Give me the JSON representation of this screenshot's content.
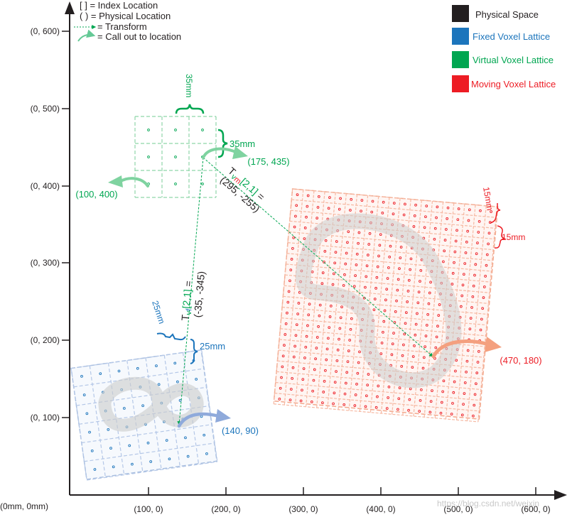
{
  "legend_left": {
    "index_location": "[ ] = Index Location",
    "physical_location": "( ) = Physical Location",
    "transform": "= Transform",
    "callout": "= Call out to location"
  },
  "legend_right": {
    "physical_space": {
      "label": "Physical Space",
      "color": "#231f20"
    },
    "fixed_lattice": {
      "label": "Fixed Voxel Lattice",
      "color": "#1c75bc"
    },
    "virtual_lattice": {
      "label": "Virtual Voxel Lattice",
      "color": "#00a651"
    },
    "moving_lattice": {
      "label": "Moving Voxel Lattice",
      "color": "#ed1c24"
    }
  },
  "axes": {
    "origin": "(0mm, 0mm)",
    "x_ticks": [
      "(100, 0)",
      "(200, 0)",
      "(300, 0)",
      "(400, 0)",
      "(500, 0)",
      "(600, 0)"
    ],
    "y_ticks": [
      "(0, 100)",
      "(0, 200)",
      "(0, 300)",
      "(0, 400)",
      "(0, 500)",
      "(0, 600)"
    ]
  },
  "virtual": {
    "spacing_top": "35mm",
    "spacing_right": "35mm",
    "callout_corner": "(100, 400)",
    "callout_point": "(175, 435)"
  },
  "fixed": {
    "spacing_left": "25mm",
    "spacing_right": "25mm",
    "callout_point": "(140, 90)"
  },
  "moving": {
    "spacing_a": "15mm",
    "spacing_b": "15mm",
    "callout_point": "(470, 180)"
  },
  "transforms": {
    "tvm_t": "T",
    "tvm_v": "v",
    "tvm_m": "m",
    "tvm_index": "[2,1]",
    "tvm_eq": " =",
    "tvm_value": "(295, -255)",
    "tvf_t": "T",
    "tvf_v": "v",
    "tvf_f": "f",
    "tvf_index": "[2,1]",
    "tvf_eq": " =",
    "tvf_value": "(-35, -345)"
  },
  "watermark": "https://blog.csdn.net/weixin"
}
